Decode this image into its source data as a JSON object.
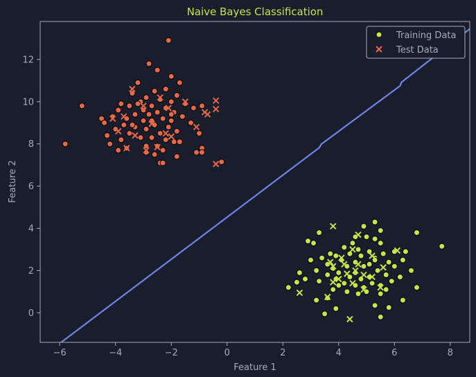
{
  "chart_data": {
    "type": "scatter",
    "title": "Naive Bayes Classification",
    "xlabel": "Feature 1",
    "ylabel": "Feature 2",
    "xlim": [
      -6.7,
      8.7
    ],
    "ylim": [
      -1.4,
      13.8
    ],
    "x_ticks": [
      -6,
      -4,
      -2,
      0,
      2,
      4,
      6,
      8
    ],
    "y_ticks": [
      0,
      2,
      4,
      6,
      8,
      10,
      12
    ],
    "grid": false,
    "legend": {
      "placement": "top-right",
      "entries": [
        "Training Data",
        "Test Data"
      ]
    },
    "colors": {
      "background": "#1a1d2b",
      "class_0": "#e2694a",
      "class_1": "#c5e54a",
      "boundary": "#6b86e8",
      "text": "#a7acbf",
      "title": "#c5e54a"
    },
    "decision_boundary": {
      "x": [
        -5.95,
        3.3,
        3.38,
        6.2,
        6.25,
        8.7
      ],
      "y": [
        -1.4,
        7.82,
        7.99,
        10.75,
        10.92,
        13.45
      ]
    },
    "series": [
      {
        "name": "Training Data",
        "marker": "circle",
        "points": [
          {
            "x": -2.1,
            "y": 12.9,
            "cls": 0
          },
          {
            "x": -2.8,
            "y": 11.8,
            "cls": 0
          },
          {
            "x": -2.5,
            "y": 11.5,
            "cls": 0
          },
          {
            "x": -2.0,
            "y": 11.2,
            "cls": 0
          },
          {
            "x": -3.2,
            "y": 10.9,
            "cls": 0
          },
          {
            "x": -1.7,
            "y": 10.9,
            "cls": 0
          },
          {
            "x": -2.2,
            "y": 10.6,
            "cls": 0
          },
          {
            "x": -2.6,
            "y": 10.5,
            "cls": 0
          },
          {
            "x": -3.4,
            "y": 10.4,
            "cls": 0
          },
          {
            "x": -1.8,
            "y": 10.3,
            "cls": 0
          },
          {
            "x": -2.9,
            "y": 10.2,
            "cls": 0
          },
          {
            "x": -2.4,
            "y": 10.1,
            "cls": 0
          },
          {
            "x": -3.1,
            "y": 10.0,
            "cls": 0
          },
          {
            "x": -2.0,
            "y": 10.0,
            "cls": 0
          },
          {
            "x": -3.8,
            "y": 9.9,
            "cls": 0
          },
          {
            "x": -1.5,
            "y": 9.9,
            "cls": 0
          },
          {
            "x": -5.2,
            "y": 9.8,
            "cls": 0
          },
          {
            "x": -3.5,
            "y": 9.8,
            "cls": 0
          },
          {
            "x": -2.7,
            "y": 9.8,
            "cls": 0
          },
          {
            "x": -2.2,
            "y": 9.7,
            "cls": 0
          },
          {
            "x": -1.2,
            "y": 9.7,
            "cls": 0
          },
          {
            "x": -0.9,
            "y": 9.8,
            "cls": 0
          },
          {
            "x": -3.9,
            "y": 9.6,
            "cls": 0
          },
          {
            "x": -3.0,
            "y": 9.6,
            "cls": 0
          },
          {
            "x": -2.5,
            "y": 9.5,
            "cls": 0
          },
          {
            "x": -1.9,
            "y": 9.5,
            "cls": 0
          },
          {
            "x": -3.3,
            "y": 9.4,
            "cls": 0
          },
          {
            "x": -2.8,
            "y": 9.4,
            "cls": 0
          },
          {
            "x": -1.6,
            "y": 9.3,
            "cls": 0
          },
          {
            "x": -4.1,
            "y": 9.3,
            "cls": 0
          },
          {
            "x": -3.6,
            "y": 9.2,
            "cls": 0
          },
          {
            "x": -2.3,
            "y": 9.2,
            "cls": 0
          },
          {
            "x": -4.5,
            "y": 9.2,
            "cls": 0
          },
          {
            "x": -3.0,
            "y": 9.1,
            "cls": 0
          },
          {
            "x": -2.0,
            "y": 9.1,
            "cls": 0
          },
          {
            "x": -1.3,
            "y": 9.0,
            "cls": 0
          },
          {
            "x": -4.4,
            "y": 9.0,
            "cls": 0
          },
          {
            "x": -3.7,
            "y": 8.9,
            "cls": 0
          },
          {
            "x": -2.6,
            "y": 8.9,
            "cls": 0
          },
          {
            "x": -3.3,
            "y": 8.8,
            "cls": 0
          },
          {
            "x": -2.1,
            "y": 8.8,
            "cls": 0
          },
          {
            "x": -4.0,
            "y": 8.7,
            "cls": 0
          },
          {
            "x": -2.9,
            "y": 8.7,
            "cls": 0
          },
          {
            "x": -1.8,
            "y": 8.6,
            "cls": 0
          },
          {
            "x": -3.5,
            "y": 8.5,
            "cls": 0
          },
          {
            "x": -2.4,
            "y": 8.5,
            "cls": 0
          },
          {
            "x": -4.3,
            "y": 8.4,
            "cls": 0
          },
          {
            "x": -1.0,
            "y": 8.5,
            "cls": 0
          },
          {
            "x": -3.1,
            "y": 8.3,
            "cls": 0
          },
          {
            "x": -2.7,
            "y": 8.3,
            "cls": 0
          },
          {
            "x": -3.8,
            "y": 8.2,
            "cls": 0
          },
          {
            "x": -2.2,
            "y": 8.2,
            "cls": 0
          },
          {
            "x": -1.9,
            "y": 8.1,
            "cls": 0
          },
          {
            "x": -1.7,
            "y": 8.1,
            "cls": 0
          },
          {
            "x": -4.2,
            "y": 8.0,
            "cls": 0
          },
          {
            "x": -5.8,
            "y": 8.0,
            "cls": 0
          },
          {
            "x": -2.9,
            "y": 7.9,
            "cls": 0
          },
          {
            "x": -2.5,
            "y": 7.9,
            "cls": 0
          },
          {
            "x": -3.6,
            "y": 7.8,
            "cls": 0
          },
          {
            "x": -0.9,
            "y": 7.8,
            "cls": 0
          },
          {
            "x": -3.9,
            "y": 7.7,
            "cls": 0
          },
          {
            "x": -2.3,
            "y": 7.7,
            "cls": 0
          },
          {
            "x": -1.1,
            "y": 7.6,
            "cls": 0
          },
          {
            "x": -0.9,
            "y": 7.6,
            "cls": 0
          },
          {
            "x": -2.9,
            "y": 7.6,
            "cls": 0
          },
          {
            "x": -1.8,
            "y": 7.4,
            "cls": 0
          },
          {
            "x": -2.6,
            "y": 7.5,
            "cls": 0
          },
          {
            "x": -0.2,
            "y": 7.15,
            "cls": 0
          },
          {
            "x": -2.4,
            "y": 7.1,
            "cls": 0
          },
          {
            "x": -2.3,
            "y": 7.1,
            "cls": 0
          },
          {
            "x": -3.2,
            "y": 9.9,
            "cls": 0
          },
          {
            "x": -2.0,
            "y": 9.4,
            "cls": 0
          },
          {
            "x": -2.7,
            "y": 9.1,
            "cls": 0
          },
          {
            "x": -3.4,
            "y": 8.9,
            "cls": 0
          },
          {
            "x": 5.3,
            "y": 4.3,
            "cls": 1
          },
          {
            "x": 4.9,
            "y": 4.1,
            "cls": 1
          },
          {
            "x": 5.5,
            "y": 3.9,
            "cls": 1
          },
          {
            "x": 3.3,
            "y": 3.8,
            "cls": 1
          },
          {
            "x": 6.8,
            "y": 3.8,
            "cls": 1
          },
          {
            "x": 4.6,
            "y": 3.6,
            "cls": 1
          },
          {
            "x": 5.0,
            "y": 3.6,
            "cls": 1
          },
          {
            "x": 5.3,
            "y": 3.5,
            "cls": 1
          },
          {
            "x": 2.9,
            "y": 3.4,
            "cls": 1
          },
          {
            "x": 3.1,
            "y": 3.3,
            "cls": 1
          },
          {
            "x": 4.5,
            "y": 3.3,
            "cls": 1
          },
          {
            "x": 5.5,
            "y": 3.3,
            "cls": 1
          },
          {
            "x": 7.7,
            "y": 3.15,
            "cls": 1
          },
          {
            "x": 4.2,
            "y": 3.1,
            "cls": 1
          },
          {
            "x": 4.7,
            "y": 3.0,
            "cls": 1
          },
          {
            "x": 5.1,
            "y": 2.9,
            "cls": 1
          },
          {
            "x": 6.0,
            "y": 2.9,
            "cls": 1
          },
          {
            "x": 6.4,
            "y": 2.9,
            "cls": 1
          },
          {
            "x": 3.7,
            "y": 2.8,
            "cls": 1
          },
          {
            "x": 4.4,
            "y": 2.8,
            "cls": 1
          },
          {
            "x": 5.6,
            "y": 2.8,
            "cls": 1
          },
          {
            "x": 3.9,
            "y": 2.7,
            "cls": 1
          },
          {
            "x": 4.8,
            "y": 2.7,
            "cls": 1
          },
          {
            "x": 3.4,
            "y": 2.6,
            "cls": 1
          },
          {
            "x": 5.3,
            "y": 2.6,
            "cls": 1
          },
          {
            "x": 6.3,
            "y": 2.5,
            "cls": 1
          },
          {
            "x": 3.0,
            "y": 2.5,
            "cls": 1
          },
          {
            "x": 4.1,
            "y": 2.5,
            "cls": 1
          },
          {
            "x": 4.6,
            "y": 2.4,
            "cls": 1
          },
          {
            "x": 5.8,
            "y": 2.4,
            "cls": 1
          },
          {
            "x": 3.6,
            "y": 2.3,
            "cls": 1
          },
          {
            "x": 5.1,
            "y": 2.3,
            "cls": 1
          },
          {
            "x": 4.3,
            "y": 2.2,
            "cls": 1
          },
          {
            "x": 4.9,
            "y": 2.2,
            "cls": 1
          },
          {
            "x": 6.0,
            "y": 2.2,
            "cls": 1
          },
          {
            "x": 3.8,
            "y": 2.1,
            "cls": 1
          },
          {
            "x": 3.2,
            "y": 2.0,
            "cls": 1
          },
          {
            "x": 5.4,
            "y": 2.0,
            "cls": 1
          },
          {
            "x": 6.6,
            "y": 2.0,
            "cls": 1
          },
          {
            "x": 4.6,
            "y": 1.9,
            "cls": 1
          },
          {
            "x": 2.6,
            "y": 1.9,
            "cls": 1
          },
          {
            "x": 4.0,
            "y": 1.9,
            "cls": 1
          },
          {
            "x": 5.7,
            "y": 1.8,
            "cls": 1
          },
          {
            "x": 3.6,
            "y": 1.8,
            "cls": 1
          },
          {
            "x": 4.4,
            "y": 1.7,
            "cls": 1
          },
          {
            "x": 5.1,
            "y": 1.7,
            "cls": 1
          },
          {
            "x": 6.2,
            "y": 1.7,
            "cls": 1
          },
          {
            "x": 2.8,
            "y": 1.6,
            "cls": 1
          },
          {
            "x": 3.9,
            "y": 1.6,
            "cls": 1
          },
          {
            "x": 4.8,
            "y": 1.6,
            "cls": 1
          },
          {
            "x": 5.9,
            "y": 1.5,
            "cls": 1
          },
          {
            "x": 3.3,
            "y": 1.5,
            "cls": 1
          },
          {
            "x": 2.5,
            "y": 1.45,
            "cls": 1
          },
          {
            "x": 4.2,
            "y": 1.4,
            "cls": 1
          },
          {
            "x": 5.2,
            "y": 1.4,
            "cls": 1
          },
          {
            "x": 4.6,
            "y": 1.3,
            "cls": 1
          },
          {
            "x": 5.5,
            "y": 1.3,
            "cls": 1
          },
          {
            "x": 4.9,
            "y": 1.2,
            "cls": 1
          },
          {
            "x": 2.2,
            "y": 1.2,
            "cls": 1
          },
          {
            "x": 6.8,
            "y": 1.2,
            "cls": 1
          },
          {
            "x": 3.8,
            "y": 1.1,
            "cls": 1
          },
          {
            "x": 5.7,
            "y": 1.1,
            "cls": 1
          },
          {
            "x": 4.3,
            "y": 1.0,
            "cls": 1
          },
          {
            "x": 5.0,
            "y": 1.0,
            "cls": 1
          },
          {
            "x": 4.7,
            "y": 0.9,
            "cls": 1
          },
          {
            "x": 5.5,
            "y": 0.9,
            "cls": 1
          },
          {
            "x": 3.6,
            "y": 0.7,
            "cls": 1
          },
          {
            "x": 3.2,
            "y": 0.6,
            "cls": 1
          },
          {
            "x": 6.3,
            "y": 0.6,
            "cls": 1
          },
          {
            "x": 5.3,
            "y": 0.35,
            "cls": 1
          },
          {
            "x": 5.8,
            "y": 0.25,
            "cls": 1
          },
          {
            "x": 3.9,
            "y": 0.2,
            "cls": 1
          },
          {
            "x": 3.5,
            "y": -0.05,
            "cls": 1
          },
          {
            "x": 5.5,
            "y": -0.2,
            "cls": 1
          },
          {
            "x": 4.0,
            "y": 1.3,
            "cls": 1
          },
          {
            "x": 5.3,
            "y": 2.5,
            "cls": 1
          }
        ]
      },
      {
        "name": "Test Data",
        "marker": "x",
        "points": [
          {
            "x": -3.4,
            "y": 10.6,
            "cls": 0
          },
          {
            "x": -2.4,
            "y": 10.2,
            "cls": 0
          },
          {
            "x": -1.5,
            "y": 10.0,
            "cls": 0
          },
          {
            "x": -0.4,
            "y": 10.05,
            "cls": 0
          },
          {
            "x": -3.0,
            "y": 9.8,
            "cls": 0
          },
          {
            "x": -2.1,
            "y": 9.7,
            "cls": 0
          },
          {
            "x": -0.4,
            "y": 9.65,
            "cls": 0
          },
          {
            "x": -0.8,
            "y": 9.5,
            "cls": 0
          },
          {
            "x": -0.7,
            "y": 9.4,
            "cls": 0
          },
          {
            "x": -3.7,
            "y": 9.3,
            "cls": 0
          },
          {
            "x": -4.1,
            "y": 9.2,
            "cls": 0
          },
          {
            "x": -2.7,
            "y": 8.95,
            "cls": 0
          },
          {
            "x": -1.1,
            "y": 8.8,
            "cls": 0
          },
          {
            "x": -3.9,
            "y": 8.6,
            "cls": 0
          },
          {
            "x": -2.2,
            "y": 8.5,
            "cls": 0
          },
          {
            "x": -3.3,
            "y": 8.4,
            "cls": 0
          },
          {
            "x": -2.0,
            "y": 8.35,
            "cls": 0
          },
          {
            "x": -2.5,
            "y": 7.85,
            "cls": 0
          },
          {
            "x": -3.6,
            "y": 7.8,
            "cls": 0
          },
          {
            "x": -2.9,
            "y": 7.7,
            "cls": 0
          },
          {
            "x": -0.4,
            "y": 7.05,
            "cls": 0
          },
          {
            "x": 3.8,
            "y": 4.1,
            "cls": 1
          },
          {
            "x": 4.7,
            "y": 3.7,
            "cls": 1
          },
          {
            "x": 4.5,
            "y": 3.0,
            "cls": 1
          },
          {
            "x": 6.1,
            "y": 2.95,
            "cls": 1
          },
          {
            "x": 5.2,
            "y": 2.7,
            "cls": 1
          },
          {
            "x": 4.1,
            "y": 2.6,
            "cls": 1
          },
          {
            "x": 3.7,
            "y": 2.4,
            "cls": 1
          },
          {
            "x": 4.7,
            "y": 2.3,
            "cls": 1
          },
          {
            "x": 4.2,
            "y": 2.3,
            "cls": 1
          },
          {
            "x": 3.8,
            "y": 2.2,
            "cls": 1
          },
          {
            "x": 5.6,
            "y": 2.15,
            "cls": 1
          },
          {
            "x": 4.6,
            "y": 2.0,
            "cls": 1
          },
          {
            "x": 4.3,
            "y": 1.85,
            "cls": 1
          },
          {
            "x": 4.9,
            "y": 1.8,
            "cls": 1
          },
          {
            "x": 5.2,
            "y": 1.7,
            "cls": 1
          },
          {
            "x": 4.0,
            "y": 1.6,
            "cls": 1
          },
          {
            "x": 3.8,
            "y": 1.45,
            "cls": 1
          },
          {
            "x": 4.5,
            "y": 1.4,
            "cls": 1
          },
          {
            "x": 5.5,
            "y": 1.2,
            "cls": 1
          },
          {
            "x": 4.9,
            "y": 1.1,
            "cls": 1
          },
          {
            "x": 2.6,
            "y": 0.95,
            "cls": 1
          },
          {
            "x": 3.6,
            "y": 0.75,
            "cls": 1
          },
          {
            "x": 4.4,
            "y": -0.3,
            "cls": 1
          }
        ]
      }
    ]
  }
}
